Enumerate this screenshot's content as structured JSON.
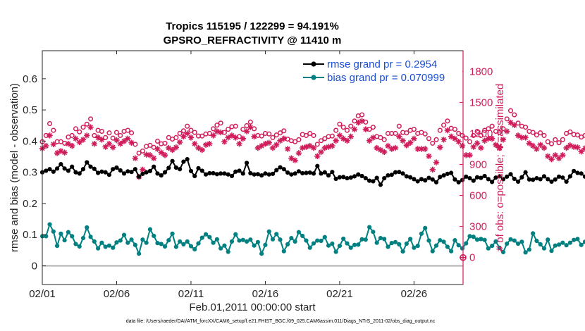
{
  "chart_data": {
    "type": "line",
    "title_line1": "Tropics 115195 / 122299 = 94.191%",
    "title_line2": "GPSRO_REFRACTIVITY @ 11410 m",
    "xlabel": "Feb.01,2011 00:00:00 start",
    "ylabel_left": "rmse and bias (model - observation)",
    "ylabel_right": "# of obs: o=possible; ✱=assimilated",
    "x_ticks": [
      "02/01",
      "02/06",
      "02/11",
      "02/16",
      "02/21",
      "02/26"
    ],
    "x_tick_days": [
      0,
      5,
      10,
      15,
      20,
      25
    ],
    "xlim_days": [
      0,
      28.3
    ],
    "y_left_ticks": [
      "0",
      "0.1",
      "0.2",
      "0.3",
      "0.4",
      "0.5",
      "0.6"
    ],
    "ylim_left": [
      -0.06,
      0.69
    ],
    "y_right_ticks": [
      "0",
      "300",
      "600",
      "900",
      "1200",
      "1500",
      "1800"
    ],
    "ylim_right": [
      -261,
      2000
    ],
    "legend": {
      "placement": "top-right",
      "entries": [
        "rmse grand pr = 0.2954",
        "bias grand pr = 0.070999"
      ]
    },
    "colors": {
      "rmse": "#000000",
      "bias": "#008080",
      "obs": "#d01c5b",
      "zero_line": "#b0b0b0",
      "legend_text": "#1a4fd6"
    },
    "time_step_days": 0.25,
    "series": [
      {
        "name": "rmse",
        "values": [
          0.3,
          0.305,
          0.31,
          0.302,
          0.312,
          0.326,
          0.312,
          0.305,
          0.318,
          0.3,
          0.296,
          0.31,
          0.332,
          0.318,
          0.311,
          0.298,
          0.302,
          0.3,
          0.292,
          0.31,
          0.315,
          0.306,
          0.296,
          0.303,
          0.301,
          0.31,
          0.286,
          0.295,
          0.3,
          0.304,
          0.318,
          0.296,
          0.29,
          0.3,
          0.314,
          0.336,
          0.315,
          0.31,
          0.334,
          0.342,
          0.304,
          0.288,
          0.313,
          0.305,
          0.293,
          0.297,
          0.297,
          0.294,
          0.296,
          0.296,
          0.293,
          0.288,
          0.302,
          0.305,
          0.296,
          0.33,
          0.297,
          0.293,
          0.294,
          0.29,
          0.296,
          0.293,
          0.295,
          0.307,
          0.316,
          0.31,
          0.299,
          0.293,
          0.296,
          0.303,
          0.297,
          0.298,
          0.299,
          0.296,
          0.32,
          0.296,
          0.3,
          0.29,
          0.301,
          0.279,
          0.284,
          0.285,
          0.281,
          0.283,
          0.287,
          0.293,
          0.288,
          0.281,
          0.273,
          0.271,
          0.282,
          0.26,
          0.281,
          0.29,
          0.292,
          0.3,
          0.301,
          0.296,
          0.287,
          0.284,
          0.278,
          0.271,
          0.278,
          0.274,
          0.282,
          0.277,
          0.268,
          0.285,
          0.29,
          0.295,
          0.298,
          0.277,
          0.268,
          0.275,
          0.286,
          0.281,
          0.273,
          0.284,
          0.282,
          0.288,
          0.278,
          0.269,
          0.283,
          0.287,
          0.278,
          0.286,
          0.294,
          0.279,
          0.27,
          0.284,
          0.3,
          0.277,
          0.276,
          0.281,
          0.278,
          0.287,
          0.278,
          0.27,
          0.277,
          0.286,
          0.283,
          0.27,
          0.287,
          0.304,
          0.298,
          0.296,
          0.286,
          0.31,
          0.306,
          0.3,
          0.292,
          0.286,
          0.278,
          0.277,
          0.283,
          0.283,
          0.286,
          0.279,
          0.277,
          0.275,
          0.282,
          0.278,
          0.293,
          0.269,
          0.274,
          0.278,
          0.269,
          0.283,
          0.289,
          0.305,
          0.296,
          0.285,
          0.295,
          0.286,
          0.284,
          0.279,
          0.28,
          0.273,
          0.286,
          0.278,
          0.293,
          0.274,
          0.288,
          0.281,
          0.278,
          0.28,
          0.293,
          0.286,
          0.278,
          0.274,
          0.296,
          0.305,
          0.289,
          0.295,
          0.311,
          0.304,
          0.293,
          0.261,
          0.296,
          0.312,
          0.302,
          0.3,
          0.308,
          0.296,
          0.286,
          0.279,
          0.277,
          0.259,
          0.27,
          0.28,
          0.287,
          0.271,
          0.28,
          0.287,
          0.286,
          0.288,
          0.274,
          0.266,
          0.256,
          0.263,
          0.27,
          0.279,
          0.289,
          0.279,
          0.285,
          0.292,
          0.273,
          0.268,
          0.276,
          0.285
        ]
      },
      {
        "name": "bias",
        "values": [
          0.095,
          0.095,
          0.133,
          0.11,
          0.064,
          0.103,
          0.082,
          0.108,
          0.095,
          0.07,
          0.062,
          0.089,
          0.123,
          0.093,
          0.078,
          0.056,
          0.074,
          0.061,
          0.065,
          0.058,
          0.075,
          0.081,
          0.099,
          0.074,
          0.084,
          0.067,
          0.039,
          0.084,
          0.074,
          0.117,
          0.096,
          0.073,
          0.07,
          0.062,
          0.082,
          0.103,
          0.061,
          0.078,
          0.069,
          0.078,
          0.063,
          0.053,
          0.072,
          0.09,
          0.101,
          0.092,
          0.074,
          0.085,
          0.056,
          0.065,
          0.045,
          0.078,
          0.101,
          0.081,
          0.083,
          0.078,
          0.084,
          0.065,
          0.076,
          0.039,
          0.067,
          0.11,
          0.085,
          0.102,
          0.084,
          0.047,
          0.069,
          0.089,
          0.078,
          0.108,
          0.096,
          0.081,
          0.058,
          0.072,
          0.081,
          0.08,
          0.092,
          0.065,
          0.071,
          0.045,
          0.064,
          0.087,
          0.072,
          0.058,
          0.067,
          0.068,
          0.085,
          0.084,
          0.124,
          0.109,
          0.074,
          0.089,
          0.086,
          0.061,
          0.073,
          0.076,
          0.069,
          0.046,
          0.071,
          0.086,
          0.058,
          0.064,
          0.103,
          0.121,
          0.081,
          0.047,
          0.065,
          0.082,
          0.077,
          0.061,
          0.047,
          0.082,
          0.066,
          0.056,
          0.072,
          0.095,
          0.093,
          0.084,
          0.086,
          0.083,
          0.056,
          0.064,
          0.078,
          0.058,
          0.044,
          0.071,
          0.085,
          0.081,
          0.071,
          0.077,
          0.043,
          0.052,
          0.104,
          0.08,
          0.069,
          0.056,
          0.084,
          0.048,
          0.065,
          0.068,
          0.074,
          0.066,
          0.074,
          0.083,
          0.086,
          0.067,
          0.077,
          0.077,
          0.068,
          0.048,
          0.054,
          0.066,
          0.055,
          0.061,
          0.073,
          0.086,
          0.09,
          0.076,
          0.064,
          0.058,
          0.073,
          0.058,
          0.084,
          0.103,
          0.092,
          0.068,
          0.074,
          0.068,
          0.088,
          0.092,
          0.082,
          0.065,
          0.066,
          0.055,
          0.067,
          0.077,
          0.07,
          0.073,
          0.055,
          0.062,
          0.071,
          0.061,
          0.06,
          0.051,
          0.074,
          0.088,
          0.083,
          0.092,
          0.074,
          0.071,
          0.083,
          0.076,
          0.079,
          0.068,
          0.088,
          0.066,
          0.067,
          0.076,
          0.074,
          0.078,
          0.091,
          0.076,
          0.061,
          0.06,
          0.087,
          0.115,
          0.091,
          0.083,
          0.094,
          0.067,
          0.069,
          0.074,
          0.073,
          0.072,
          0.057,
          0.081,
          0.09,
          0.07,
          0.078,
          0.091,
          0.082,
          0.059,
          0.066,
          0.073,
          0.072,
          0.079,
          0.087,
          0.072,
          0.06,
          0.062,
          0.077,
          0.065,
          0.055,
          0.065,
          0.072,
          0.087,
          0.078,
          0.072,
          0.065,
          0.071
        ]
      },
      {
        "name": "obs possible",
        "values": [
          1120,
          1180,
          1295,
          1230,
          1120,
          1120,
          1105,
          1165,
          1180,
          1245,
          1215,
          1260,
          1290,
          1340,
          1180,
          1230,
          1220,
          1160,
          1205,
          1155,
          1210,
          1180,
          1220,
          1230,
          1205,
          1095,
          1010,
          1030,
          1075,
          1085,
          1065,
          1125,
          1100,
          1105,
          1160,
          1145,
          1160,
          1200,
          1225,
          1270,
          1230,
          1210,
          1175,
          1175,
          1195,
          1200,
          1245,
          1280,
          1300,
          1210,
          1240,
          1265,
          1270,
          1170,
          1240,
          1275,
          1310,
          1245,
          1180,
          1175,
          1200,
          1195,
          1160,
          1185,
          1205,
          1225,
          1145,
          1130,
          1120,
          1140,
          1190,
          1180,
          1200,
          1180,
          1095,
          1130,
          1150,
          1170,
          1175,
          1230,
          1290,
          1260,
          1230,
          1270,
          1320,
          1370,
          1380,
          1310,
          1240,
          1260,
          1170,
          1160,
          1140,
          1200,
          1200,
          1200,
          1270,
          1210,
          1205,
          1230,
          1240,
          1200,
          1210,
          1195,
          1150,
          1105,
          1140,
          1230,
          1280,
          1320,
          1250,
          1240,
          1200,
          1180,
          1155,
          1120,
          1180,
          1220,
          1180,
          1230,
          1245,
          1270,
          1220,
          1210,
          1245,
          1340,
          1420,
          1380,
          1300,
          1270,
          1260,
          1220,
          1210,
          1185,
          1205,
          1180,
          1120,
          1100,
          1140,
          1110,
          1140,
          1200,
          1215,
          1190,
          1185,
          1165,
          1180,
          1205,
          1190,
          1160,
          1205,
          1215,
          1235,
          1255,
          1215,
          1185,
          1135,
          1145,
          1160,
          1180,
          1155,
          1125,
          1110,
          1155,
          1200,
          1220,
          1240,
          1220,
          1185,
          1170,
          1185,
          1180,
          1140,
          1215,
          1260,
          1230,
          1210,
          1185,
          1180,
          1125,
          1145,
          1170,
          1210,
          1185,
          1105,
          1090,
          1140,
          1160,
          1190,
          1215,
          1260,
          1305,
          1320,
          1295,
          1360,
          1380,
          1450,
          1425,
          1395,
          1360,
          1345,
          1390,
          1345,
          1250,
          1180,
          1140,
          1120,
          1130,
          1170,
          1220,
          1240,
          1265,
          1300,
          1340,
          1380,
          1420,
          1410,
          1370,
          1310,
          1260,
          1160,
          1100,
          1090,
          1090,
          1130,
          1180,
          1240,
          1270,
          1230,
          1170,
          1190,
          1215,
          1200,
          1190
        ]
      },
      {
        "name": "obs assimilated",
        "values": [
          1055,
          1080,
          1180,
          1095,
          1010,
          1030,
          1015,
          1100,
          1080,
          1150,
          1115,
          1140,
          1180,
          1260,
          1100,
          1160,
          1140,
          1070,
          1100,
          1065,
          1135,
          1100,
          1125,
          1150,
          1110,
          960,
          780,
          850,
          995,
          990,
          960,
          1050,
          1015,
          990,
          1060,
          1040,
          1065,
          1115,
          1170,
          1200,
          1160,
          1100,
          1060,
          1040,
          1090,
          1100,
          1180,
          1220,
          1210,
          1120,
          1160,
          1180,
          1160,
          1100,
          1150,
          1220,
          1260,
          1170,
          1060,
          1080,
          1100,
          1110,
          1060,
          1090,
          1130,
          1150,
          1050,
          960,
          940,
          1010,
          1060,
          1070,
          1080,
          1060,
          980,
          1020,
          1060,
          1070,
          1080,
          1130,
          1180,
          1150,
          1130,
          1170,
          1240,
          1305,
          1320,
          1240,
          1130,
          1160,
          1060,
          1040,
          1020,
          1080,
          1050,
          1060,
          1170,
          1130,
          1085,
          1110,
          1150,
          1050,
          1050,
          1050,
          980,
          850,
          920,
          1065,
          1140,
          1230,
          1170,
          1150,
          1120,
          1080,
          990,
          990,
          1070,
          1105,
          1060,
          1130,
          1150,
          1150,
          1090,
          1060,
          1140,
          1220,
          1305,
          1280,
          1180,
          1160,
          1160,
          1105,
          1080,
          1050,
          1090,
          1060,
          980,
          950,
          990,
          960,
          990,
          1060,
          1085,
          1070,
          1065,
          1025,
          1055,
          1090,
          1060,
          995,
          1070,
          1085,
          1115,
          1135,
          1085,
          1010,
          960,
          975,
          1000,
          1030,
          960,
          930,
          930,
          1025,
          1080,
          1085,
          1120,
          1060,
          1030,
          990,
          1030,
          1040,
          975,
          1065,
          1155,
          1110,
          1060,
          1025,
          1010,
          950,
          975,
          1000,
          1030,
          1005,
          890,
          840,
          990,
          1025,
          1040,
          1090,
          1150,
          1180,
          1200,
          1175,
          1250,
          1290,
          1340,
          1320,
          1280,
          1240,
          1230,
          1270,
          1210,
          1100,
          1010,
          990,
          960,
          990,
          1030,
          1100,
          1140,
          1160,
          1200,
          1240,
          1270,
          1310,
          1290,
          1240,
          1190,
          1130,
          1010,
          900,
          850,
          830,
          900,
          1020,
          1090,
          1130,
          1080,
          1040,
          1070,
          1090,
          1060,
          1050
        ]
      }
    ],
    "endpoint_marker": {
      "day": 28.3,
      "value": 0
    }
  },
  "footer": "data file: /Users/raeder/DAI/ATM_forcXX/CAM6_setup/f.e21.FHIST_BGC.f09_025.CAM6assim.011/Diags_NTrS_2011-02/obs_diag_output.nc"
}
